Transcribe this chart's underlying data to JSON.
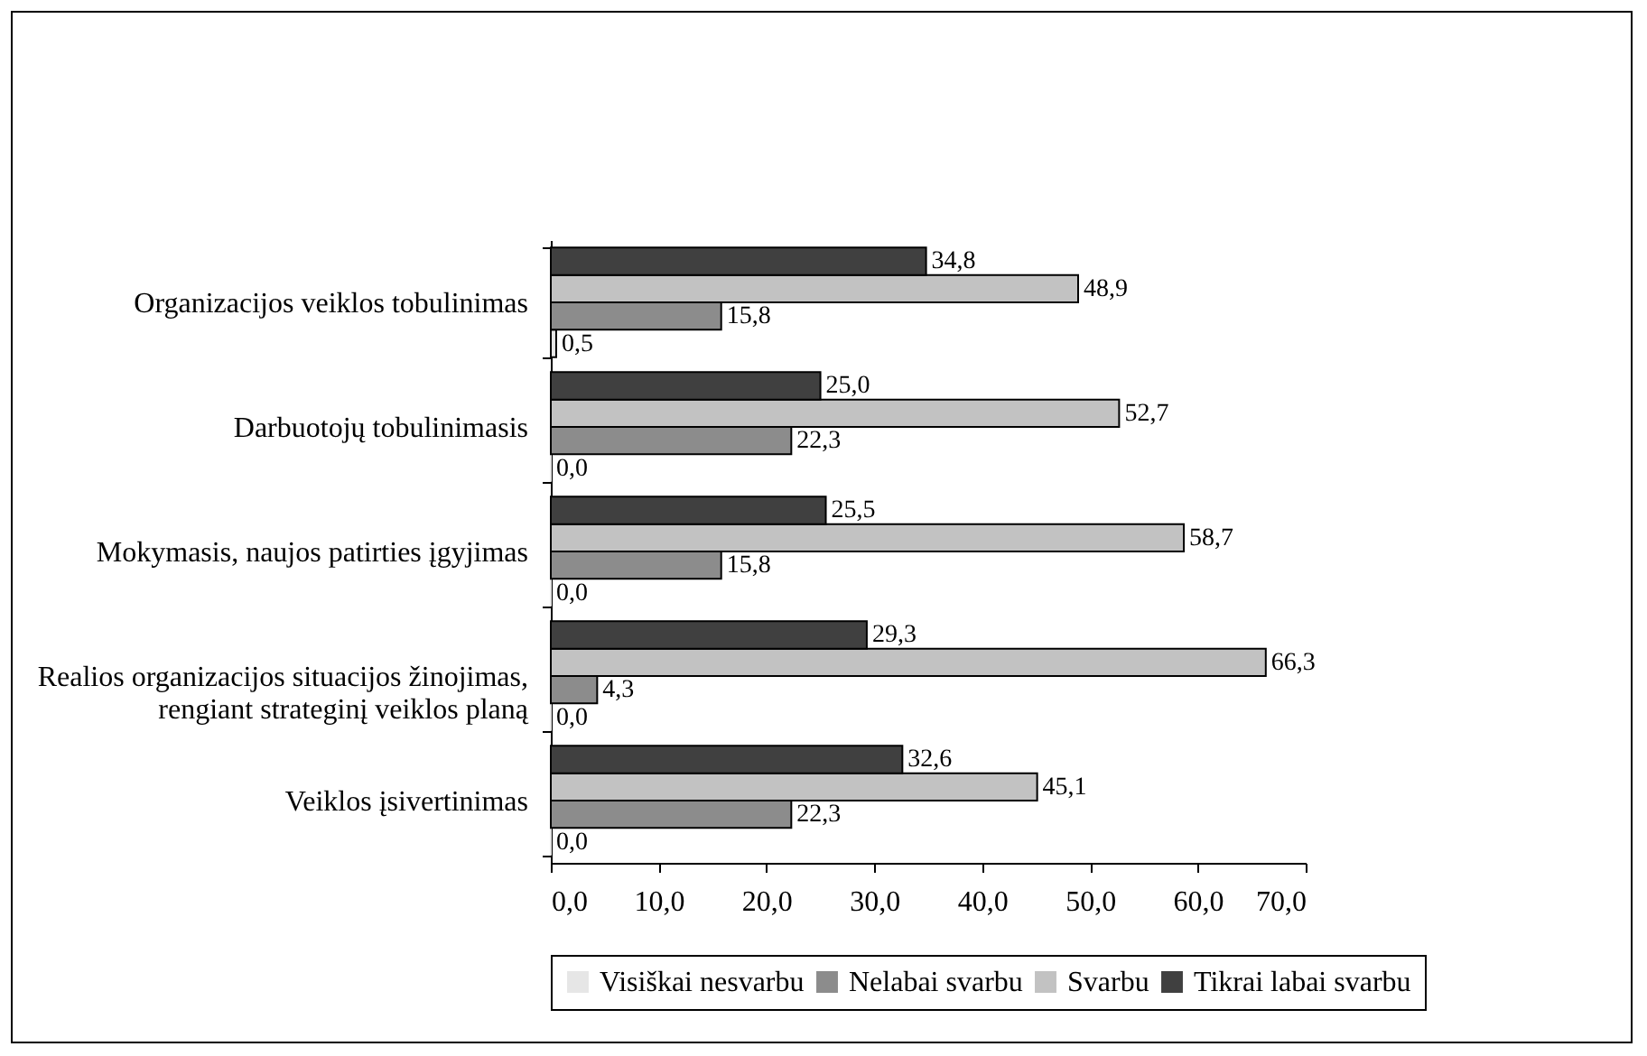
{
  "chart_data": {
    "type": "bar",
    "orientation": "horizontal",
    "categories": [
      "Organizacijos veiklos tobulinimas",
      "Darbuotojų tobulinimasis",
      "Mokymasis, naujos patirties įgyjimas",
      "Realios organizacijos situacijos žinojimas, rengiant strateginį veiklos planą",
      "Veiklos įsivertinimas"
    ],
    "series": [
      {
        "name": "Visiškai nesvarbu",
        "color": "#e6e6e6",
        "values": [
          0.5,
          0.0,
          0.0,
          0.0,
          0.0
        ],
        "value_labels": [
          "0,5",
          "0,0",
          "0,0",
          "0,0",
          "0,0"
        ]
      },
      {
        "name": "Nelabai svarbu",
        "color": "#8c8c8c",
        "values": [
          15.8,
          22.3,
          15.8,
          4.3,
          22.3
        ],
        "value_labels": [
          "15,8",
          "22,3",
          "15,8",
          "4,3",
          "22,3"
        ]
      },
      {
        "name": "Svarbu",
        "color": "#c2c2c2",
        "values": [
          48.9,
          52.7,
          58.7,
          66.3,
          45.1
        ],
        "value_labels": [
          "48,9",
          "52,7",
          "58,7",
          "66,3",
          "45,1"
        ]
      },
      {
        "name": "Tikrai labai svarbu",
        "color": "#404040",
        "values": [
          34.8,
          25.0,
          25.5,
          29.3,
          32.6
        ],
        "value_labels": [
          "34,8",
          "25,0",
          "25,5",
          "29,3",
          "32,6"
        ]
      }
    ],
    "xlim": [
      0,
      70
    ],
    "xticks": [
      {
        "value": 0,
        "label": "0,0"
      },
      {
        "value": 10,
        "label": "10,0"
      },
      {
        "value": 20,
        "label": "20,0"
      },
      {
        "value": 30,
        "label": "30,0"
      },
      {
        "value": 40,
        "label": "40,0"
      },
      {
        "value": 50,
        "label": "50,0"
      },
      {
        "value": 60,
        "label": "60,0"
      },
      {
        "value": 70,
        "label": "70,0"
      }
    ],
    "grid": false,
    "legend": "bottom"
  }
}
